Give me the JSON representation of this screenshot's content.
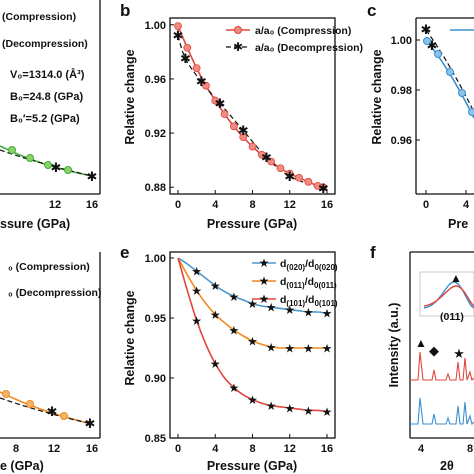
{
  "panels": {
    "a": {
      "legend": [
        "(Compression)",
        "(Decompression)"
      ],
      "annotations": [
        "V₀=1314.0 (Å³)",
        "B₀=24.8 (GPa)",
        "B₀′=5.2 (GPa)"
      ],
      "x_ticks": [
        "12",
        "16"
      ],
      "xlabel": "ssure (GPa)"
    },
    "b": {
      "label": "b",
      "ylabel": "Relative change",
      "xlabel": "Pressure (GPa)",
      "x_ticks": [
        "0",
        "4",
        "8",
        "12",
        "16"
      ],
      "y_ticks": [
        "1.00",
        "0.96",
        "0.92",
        "0.88"
      ],
      "legend": [
        "a/a₀ (Compression)",
        "a/a₀ (Decompression)"
      ]
    },
    "c": {
      "label": "c",
      "ylabel": "Relative change",
      "xlabel": "Pre",
      "x_ticks": [
        "0",
        "4"
      ],
      "y_ticks": [
        "1.00",
        "0.98",
        "0.96"
      ]
    },
    "d": {
      "legend": [
        "₀ (Compression)",
        "₀ (Decompression)"
      ],
      "x_ticks": [
        "8",
        "12",
        "16"
      ],
      "xlabel": "e (GPa)"
    },
    "e": {
      "label": "e",
      "ylabel": "Relative change",
      "xlabel": "Pressure (GPa)",
      "x_ticks": [
        "0",
        "4",
        "8",
        "12",
        "16"
      ],
      "y_ticks": [
        "1.00",
        "0.95",
        "0.90",
        "0.85"
      ],
      "legend": [
        "d(020)/d0(020)",
        "d(011)/d0(011)",
        "d(101)/d0(101)"
      ]
    },
    "f": {
      "label": "f",
      "ylabel": "Intensity (a.u.)",
      "inset_label": "(011)",
      "x_ticks": [
        "4",
        "8"
      ],
      "xlabel": "2θ"
    }
  },
  "colors": {
    "red": "#e0463c",
    "black": "#111111",
    "green": "#3fae3a",
    "blue": "#3a8fd1",
    "orange": "#ef8a22",
    "steelblue": "#4d98cc"
  },
  "chart_data": [
    {
      "panel": "b",
      "type": "line",
      "xlim": [
        0,
        16
      ],
      "ylim": [
        0.875,
        1.005
      ],
      "series": [
        {
          "name": "a/a₀ (Compression)",
          "x": [
            0,
            1,
            2,
            3,
            4,
            5,
            6,
            7,
            8,
            9,
            10,
            11,
            12,
            13,
            14,
            15,
            15.6
          ],
          "y": [
            0.999,
            0.983,
            0.968,
            0.955,
            0.944,
            0.934,
            0.925,
            0.917,
            0.91,
            0.904,
            0.899,
            0.894,
            0.89,
            0.887,
            0.884,
            0.881,
            0.88
          ]
        },
        {
          "name": "a/a₀ (Decompression)",
          "x": [
            0,
            0.8,
            2.5,
            4.5,
            7,
            9.5,
            12,
            15.6
          ],
          "y": [
            0.992,
            0.975,
            0.958,
            0.942,
            0.922,
            0.902,
            0.888,
            0.879
          ]
        }
      ]
    },
    {
      "panel": "e",
      "type": "line",
      "xlim": [
        0,
        16
      ],
      "ylim": [
        0.85,
        1.005
      ],
      "series": [
        {
          "name": "d(020)/d0(020)",
          "x": [
            0,
            1,
            2,
            3,
            4,
            5,
            6,
            7,
            8,
            9,
            10,
            11,
            12,
            13,
            14,
            15,
            16
          ],
          "y": [
            1.0,
            0.995,
            0.989,
            0.983,
            0.977,
            0.972,
            0.968,
            0.965,
            0.962,
            0.96,
            0.959,
            0.958,
            0.957,
            0.956,
            0.955,
            0.955,
            0.954
          ]
        },
        {
          "name": "d(011)/d0(011)",
          "x": [
            0,
            1,
            2,
            3,
            4,
            5,
            6,
            7,
            8,
            9,
            10,
            11,
            12,
            13,
            14,
            15,
            16
          ],
          "y": [
            1.0,
            0.986,
            0.973,
            0.962,
            0.953,
            0.946,
            0.94,
            0.935,
            0.931,
            0.928,
            0.926,
            0.925,
            0.925,
            0.925,
            0.925,
            0.925,
            0.925
          ]
        },
        {
          "name": "d(101)/d0(101)",
          "x": [
            0,
            1,
            2,
            3,
            4,
            5,
            6,
            7,
            8,
            9,
            10,
            11,
            12,
            13,
            14,
            15,
            16
          ],
          "y": [
            1.0,
            0.973,
            0.948,
            0.928,
            0.912,
            0.9,
            0.892,
            0.886,
            0.882,
            0.879,
            0.877,
            0.876,
            0.875,
            0.874,
            0.873,
            0.873,
            0.872
          ]
        }
      ]
    }
  ]
}
